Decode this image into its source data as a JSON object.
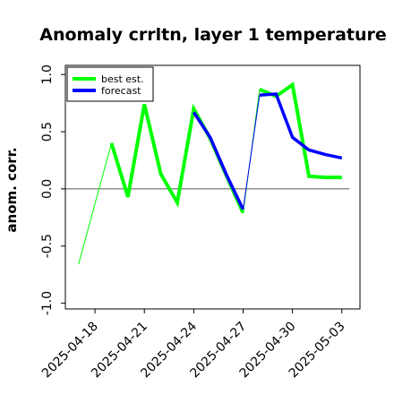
{
  "chart_data": {
    "type": "line",
    "title": "Anomaly crrltn, layer 1 temperature",
    "xlabel": "",
    "ylabel": "anom. corr.",
    "ylim": [
      -1.05,
      1.08
    ],
    "xlim": [
      -0.8,
      17.1
    ],
    "yticks": [
      -1.0,
      -0.5,
      0.0,
      0.5,
      1.0
    ],
    "yticklabels": [
      "-1.0",
      "-0.5",
      "0.0",
      "0.5",
      "1.0"
    ],
    "x_tick_positions": [
      1,
      4,
      7,
      10,
      13,
      16
    ],
    "x_tick_labels": [
      "2025-04-18",
      "2025-04-21",
      "2025-04-24",
      "2025-04-27",
      "2025-04-30",
      "2025-05-03"
    ],
    "x_tick_label_colors": [
      "#000000",
      "#000000",
      "#008000",
      "#000000",
      "#000000",
      "#000000"
    ],
    "zero_line": 0,
    "grid": false,
    "legend_position": "top-left",
    "series": [
      {
        "name": "best est.",
        "color": "#00ff00",
        "x": [
          0,
          2,
          3,
          4,
          5,
          6,
          7,
          8,
          9,
          10,
          11,
          12,
          13,
          14,
          15,
          16
        ],
        "y": [
          -0.66,
          0.4,
          -0.07,
          0.74,
          0.13,
          -0.12,
          0.7,
          0.44,
          0.11,
          -0.21,
          0.87,
          0.81,
          0.91,
          0.11,
          0.1,
          0.1
        ]
      },
      {
        "name": "forecast",
        "color": "#0000ff",
        "x": [
          7,
          8,
          9,
          10,
          11,
          12,
          13,
          14,
          15,
          16
        ],
        "y": [
          0.67,
          0.45,
          0.12,
          -0.18,
          0.82,
          0.83,
          0.45,
          0.34,
          0.3,
          0.27
        ]
      }
    ]
  }
}
